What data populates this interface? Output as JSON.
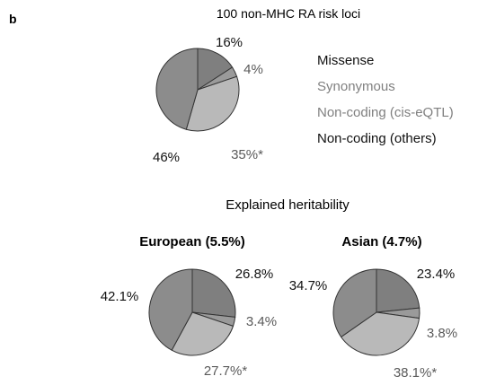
{
  "panel_label": "b",
  "colors": {
    "missense": "#7f7f7f",
    "synonymous": "#9a9a9a",
    "noncoding_cis_eqtl": "#b9b9b9",
    "noncoding_others": "#8c8c8c",
    "outline": "#333333",
    "label_dark": "#111111",
    "label_mid": "#5a5a5a",
    "label_light": "#808080"
  },
  "legend": {
    "items": [
      {
        "label": "Missense",
        "tone": "dark"
      },
      {
        "label": "Synonymous",
        "tone": "light"
      },
      {
        "label": "Non-coding (cis-eQTL)",
        "tone": "light"
      },
      {
        "label": "Non-coding (others)",
        "tone": "dark"
      }
    ]
  },
  "section_title": "Explained heritability",
  "chart_data": [
    {
      "type": "pie",
      "title": "100 non-MHC RA risk loci",
      "categories": [
        "Missense",
        "Synonymous",
        "Non-coding (cis-eQTL)",
        "Non-coding (others)"
      ],
      "values": [
        16,
        4,
        35,
        46
      ],
      "value_labels": [
        "16%",
        "4%",
        "35%*",
        "46%"
      ],
      "legend_placement": "right"
    },
    {
      "type": "pie",
      "title": "European (5.5%)",
      "categories": [
        "Missense",
        "Synonymous",
        "Non-coding (cis-eQTL)",
        "Non-coding (others)"
      ],
      "values": [
        26.8,
        3.4,
        27.7,
        42.1
      ],
      "value_labels": [
        "26.8%",
        "3.4%",
        "27.7%*",
        "42.1%"
      ]
    },
    {
      "type": "pie",
      "title": "Asian (4.7%)",
      "categories": [
        "Missense",
        "Synonymous",
        "Non-coding (cis-eQTL)",
        "Non-coding (others)"
      ],
      "values": [
        23.4,
        3.8,
        38.1,
        34.7
      ],
      "value_labels": [
        "23.4%",
        "3.8%",
        "38.1%*",
        "34.7%"
      ]
    }
  ]
}
